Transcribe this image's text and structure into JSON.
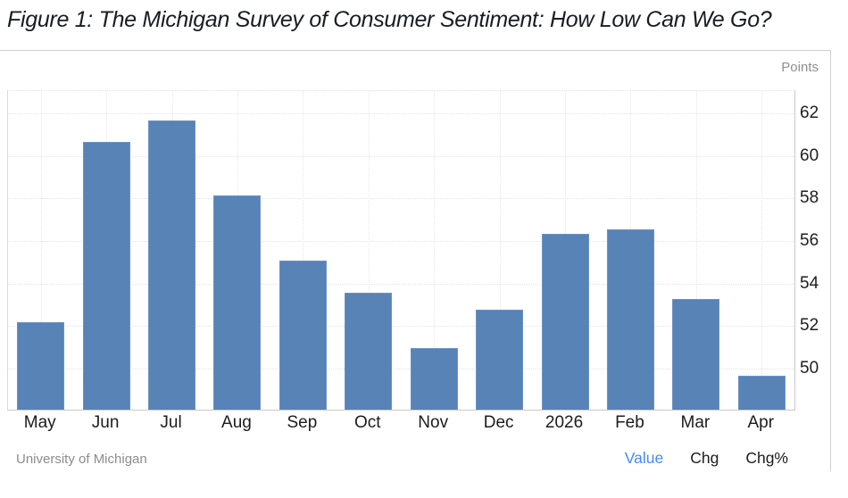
{
  "title": "Figure 1: The Michigan Survey of Consumer Sentiment: How Low Can We Go?",
  "axis_unit_label": "Points",
  "source": "University of Michigan",
  "footer_links": [
    {
      "label": "Value",
      "active": true
    },
    {
      "label": "Chg",
      "active": false
    },
    {
      "label": "Chg%",
      "active": false
    }
  ],
  "colors": {
    "bar": "#5783b7",
    "bar_border": "#6e92c1",
    "active_link": "#418df2",
    "grid": "#e3e3e3",
    "axis_line": "#c9c9c9",
    "title_text": "#191c24",
    "axis_text": "#1c1c1c",
    "muted_text": "#8f8f8f"
  },
  "chart_data": {
    "type": "bar",
    "title": "Figure 1: The Michigan Survey of Consumer Sentiment: How Low Can We Go?",
    "categories": [
      "May",
      "Jun",
      "Jul",
      "Aug",
      "Sep",
      "Oct",
      "Nov",
      "Dec",
      "2026",
      "Feb",
      "Mar",
      "Apr"
    ],
    "values": [
      52.2,
      60.7,
      61.7,
      58.2,
      55.1,
      53.6,
      51.0,
      52.8,
      56.4,
      56.6,
      53.3,
      49.7
    ],
    "xlabel": "",
    "ylabel": "Points",
    "yticks": [
      50,
      52,
      54,
      56,
      58,
      60,
      62
    ],
    "ylim": [
      48.1,
      63.1
    ],
    "grid": true,
    "y_axis_side": "right",
    "legend": null,
    "source_note": "University of Michigan"
  }
}
